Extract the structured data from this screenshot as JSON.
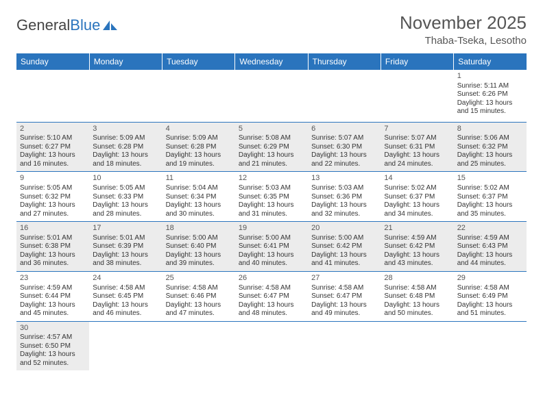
{
  "logo": {
    "text1": "General",
    "text2": "Blue"
  },
  "title": "November 2025",
  "location": "Thaba-Tseka, Lesotho",
  "weekdays": [
    "Sunday",
    "Monday",
    "Tuesday",
    "Wednesday",
    "Thursday",
    "Friday",
    "Saturday"
  ],
  "colors": {
    "header_bg": "#2a74bd",
    "row_alt": "#ececec",
    "border": "#2a74bd"
  },
  "weeks": [
    [
      null,
      null,
      null,
      null,
      null,
      null,
      {
        "n": "1",
        "sr": "5:11 AM",
        "ss": "6:26 PM",
        "dl": "13 hours and 15 minutes."
      }
    ],
    [
      {
        "n": "2",
        "sr": "5:10 AM",
        "ss": "6:27 PM",
        "dl": "13 hours and 16 minutes."
      },
      {
        "n": "3",
        "sr": "5:09 AM",
        "ss": "6:28 PM",
        "dl": "13 hours and 18 minutes."
      },
      {
        "n": "4",
        "sr": "5:09 AM",
        "ss": "6:28 PM",
        "dl": "13 hours and 19 minutes."
      },
      {
        "n": "5",
        "sr": "5:08 AM",
        "ss": "6:29 PM",
        "dl": "13 hours and 21 minutes."
      },
      {
        "n": "6",
        "sr": "5:07 AM",
        "ss": "6:30 PM",
        "dl": "13 hours and 22 minutes."
      },
      {
        "n": "7",
        "sr": "5:07 AM",
        "ss": "6:31 PM",
        "dl": "13 hours and 24 minutes."
      },
      {
        "n": "8",
        "sr": "5:06 AM",
        "ss": "6:32 PM",
        "dl": "13 hours and 25 minutes."
      }
    ],
    [
      {
        "n": "9",
        "sr": "5:05 AM",
        "ss": "6:32 PM",
        "dl": "13 hours and 27 minutes."
      },
      {
        "n": "10",
        "sr": "5:05 AM",
        "ss": "6:33 PM",
        "dl": "13 hours and 28 minutes."
      },
      {
        "n": "11",
        "sr": "5:04 AM",
        "ss": "6:34 PM",
        "dl": "13 hours and 30 minutes."
      },
      {
        "n": "12",
        "sr": "5:03 AM",
        "ss": "6:35 PM",
        "dl": "13 hours and 31 minutes."
      },
      {
        "n": "13",
        "sr": "5:03 AM",
        "ss": "6:36 PM",
        "dl": "13 hours and 32 minutes."
      },
      {
        "n": "14",
        "sr": "5:02 AM",
        "ss": "6:37 PM",
        "dl": "13 hours and 34 minutes."
      },
      {
        "n": "15",
        "sr": "5:02 AM",
        "ss": "6:37 PM",
        "dl": "13 hours and 35 minutes."
      }
    ],
    [
      {
        "n": "16",
        "sr": "5:01 AM",
        "ss": "6:38 PM",
        "dl": "13 hours and 36 minutes."
      },
      {
        "n": "17",
        "sr": "5:01 AM",
        "ss": "6:39 PM",
        "dl": "13 hours and 38 minutes."
      },
      {
        "n": "18",
        "sr": "5:00 AM",
        "ss": "6:40 PM",
        "dl": "13 hours and 39 minutes."
      },
      {
        "n": "19",
        "sr": "5:00 AM",
        "ss": "6:41 PM",
        "dl": "13 hours and 40 minutes."
      },
      {
        "n": "20",
        "sr": "5:00 AM",
        "ss": "6:42 PM",
        "dl": "13 hours and 41 minutes."
      },
      {
        "n": "21",
        "sr": "4:59 AM",
        "ss": "6:42 PM",
        "dl": "13 hours and 43 minutes."
      },
      {
        "n": "22",
        "sr": "4:59 AM",
        "ss": "6:43 PM",
        "dl": "13 hours and 44 minutes."
      }
    ],
    [
      {
        "n": "23",
        "sr": "4:59 AM",
        "ss": "6:44 PM",
        "dl": "13 hours and 45 minutes."
      },
      {
        "n": "24",
        "sr": "4:58 AM",
        "ss": "6:45 PM",
        "dl": "13 hours and 46 minutes."
      },
      {
        "n": "25",
        "sr": "4:58 AM",
        "ss": "6:46 PM",
        "dl": "13 hours and 47 minutes."
      },
      {
        "n": "26",
        "sr": "4:58 AM",
        "ss": "6:47 PM",
        "dl": "13 hours and 48 minutes."
      },
      {
        "n": "27",
        "sr": "4:58 AM",
        "ss": "6:47 PM",
        "dl": "13 hours and 49 minutes."
      },
      {
        "n": "28",
        "sr": "4:58 AM",
        "ss": "6:48 PM",
        "dl": "13 hours and 50 minutes."
      },
      {
        "n": "29",
        "sr": "4:58 AM",
        "ss": "6:49 PM",
        "dl": "13 hours and 51 minutes."
      }
    ],
    [
      {
        "n": "30",
        "sr": "4:57 AM",
        "ss": "6:50 PM",
        "dl": "13 hours and 52 minutes."
      },
      null,
      null,
      null,
      null,
      null,
      null
    ]
  ],
  "labels": {
    "sunrise": "Sunrise:",
    "sunset": "Sunset:",
    "daylight": "Daylight:"
  }
}
